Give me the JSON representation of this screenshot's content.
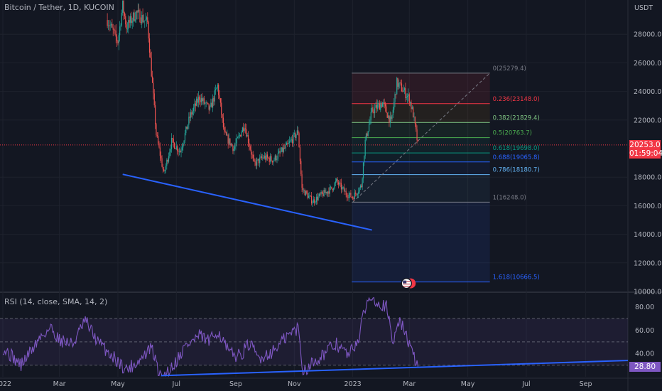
{
  "header": {
    "title": "Bitcoin / Tether, 1D, KUCOIN",
    "currency": "USDT"
  },
  "price_tag": {
    "price": "20253.0",
    "countdown": "01:59:04"
  },
  "rsi_panel": {
    "title": "RSI (14, close, SMA, 14, 2)",
    "value_label": "28.80"
  },
  "colors": {
    "background": "#131722",
    "up": "#26a69a",
    "down": "#ef5350",
    "trendline": "#2962ff",
    "rsi_line": "#7e57c2",
    "price_tag": "#f23645",
    "fib_box": "#2962ff"
  },
  "chart_data": [
    {
      "type": "candlestick",
      "title": "Bitcoin / Tether, 1D, KUCOIN",
      "y_axis": {
        "unit": "USDT",
        "ticks": [
          "28000.0",
          "26000.0",
          "24000.0",
          "22000.0",
          "18000.0",
          "16000.0",
          "14000.0",
          "12000.0",
          "10000.0"
        ],
        "range": [
          10000,
          30400
        ]
      },
      "x_axis": {
        "ticks": [
          "2022",
          "Mar",
          "May",
          "Jul",
          "Sep",
          "Nov",
          "2023",
          "Mar",
          "May",
          "Jul",
          "Sep"
        ]
      },
      "price_path": [
        [
          "2022-04-20",
          29000
        ],
        [
          "2022-05-01",
          27500
        ],
        [
          "2022-05-06",
          30000
        ],
        [
          "2022-05-10",
          28500
        ],
        [
          "2022-05-20",
          29500
        ],
        [
          "2022-06-01",
          28800
        ],
        [
          "2022-06-10",
          21000
        ],
        [
          "2022-06-18",
          18200
        ],
        [
          "2022-06-26",
          20500
        ],
        [
          "2022-07-05",
          19800
        ],
        [
          "2022-07-15",
          22200
        ],
        [
          "2022-07-25",
          23600
        ],
        [
          "2022-08-05",
          22700
        ],
        [
          "2022-08-13",
          24400
        ],
        [
          "2022-08-20",
          21000
        ],
        [
          "2022-08-30",
          20000
        ],
        [
          "2022-09-10",
          21700
        ],
        [
          "2022-09-20",
          18900
        ],
        [
          "2022-09-30",
          19400
        ],
        [
          "2022-10-10",
          19200
        ],
        [
          "2022-10-25",
          20200
        ],
        [
          "2022-11-05",
          21200
        ],
        [
          "2022-11-09",
          17200
        ],
        [
          "2022-11-20",
          16300
        ],
        [
          "2022-11-28",
          16700
        ],
        [
          "2022-12-10",
          17200
        ],
        [
          "2022-12-15",
          17700
        ],
        [
          "2022-12-25",
          16850
        ],
        [
          "2023-01-01",
          16600
        ],
        [
          "2023-01-10",
          17400
        ],
        [
          "2023-01-14",
          20500
        ],
        [
          "2023-01-21",
          22600
        ],
        [
          "2023-02-01",
          23200
        ],
        [
          "2023-02-10",
          21800
        ],
        [
          "2023-02-16",
          24600
        ],
        [
          "2023-02-20",
          24300
        ],
        [
          "2023-03-01",
          23500
        ],
        [
          "2023-03-05",
          22400
        ],
        [
          "2023-03-10",
          20253
        ]
      ],
      "last_price": 20253.0,
      "fibonacci": [
        {
          "level": "0",
          "price": 25279.4,
          "label": "0(25279.4)"
        },
        {
          "level": "0.236",
          "price": 23148.0,
          "label": "0.236(23148.0)"
        },
        {
          "level": "0.382",
          "price": 21829.4,
          "label": "0.382(21829.4)"
        },
        {
          "level": "0.5",
          "price": 20763.7,
          "label": "0.5(20763.7)"
        },
        {
          "level": "0.618",
          "price": 19698.0,
          "label": "0.618(19698.0)"
        },
        {
          "level": "0.688",
          "price": 19065.8,
          "label": "0.688(19065.8)"
        },
        {
          "level": "0.786",
          "price": 18180.7,
          "label": "0.786(18180.7)"
        },
        {
          "level": "1",
          "price": 16248.0,
          "label": "1(16248.0)"
        },
        {
          "level": "1.618",
          "price": 10666.5,
          "label": "1.618(10666.5)"
        }
      ],
      "trendline": {
        "from": [
          "2022-05-06",
          18200
        ],
        "to": [
          "2023-01-21",
          14300
        ]
      },
      "grid": true
    },
    {
      "type": "line",
      "title": "RSI (14, close, SMA, 14, 2)",
      "y_axis": {
        "ticks": [
          "80.00",
          "60.00",
          "40.00"
        ],
        "range": [
          20,
          92
        ]
      },
      "bands": [
        70,
        50,
        30
      ],
      "rsi_path": [
        [
          "2022-01-01",
          45
        ],
        [
          "2022-01-20",
          30
        ],
        [
          "2022-02-10",
          55
        ],
        [
          "2022-02-20",
          62
        ],
        [
          "2022-03-01",
          52
        ],
        [
          "2022-03-15",
          48
        ],
        [
          "2022-03-28",
          68
        ],
        [
          "2022-04-10",
          50
        ],
        [
          "2022-04-25",
          38
        ],
        [
          "2022-05-10",
          26
        ],
        [
          "2022-05-25",
          35
        ],
        [
          "2022-06-05",
          45
        ],
        [
          "2022-06-15",
          18
        ],
        [
          "2022-06-28",
          30
        ],
        [
          "2022-07-10",
          46
        ],
        [
          "2022-07-25",
          55
        ],
        [
          "2022-08-05",
          50
        ],
        [
          "2022-08-13",
          60
        ],
        [
          "2022-08-25",
          40
        ],
        [
          "2022-09-05",
          38
        ],
        [
          "2022-09-15",
          48
        ],
        [
          "2022-09-25",
          36
        ],
        [
          "2022-10-10",
          42
        ],
        [
          "2022-10-25",
          55
        ],
        [
          "2022-11-05",
          62
        ],
        [
          "2022-11-10",
          25
        ],
        [
          "2022-11-20",
          32
        ],
        [
          "2022-12-05",
          42
        ],
        [
          "2022-12-15",
          48
        ],
        [
          "2022-12-28",
          38
        ],
        [
          "2023-01-08",
          55
        ],
        [
          "2023-01-14",
          80
        ],
        [
          "2023-01-21",
          90
        ],
        [
          "2023-01-28",
          84
        ],
        [
          "2023-02-05",
          80
        ],
        [
          "2023-02-12",
          48
        ],
        [
          "2023-02-17",
          70
        ],
        [
          "2023-02-25",
          58
        ],
        [
          "2023-03-03",
          42
        ],
        [
          "2023-03-10",
          28.8
        ]
      ],
      "last_value": 28.8,
      "trendline": {
        "from": [
          "2022-06-15",
          21
        ],
        "to": [
          "2023-09-30",
          34
        ]
      }
    }
  ]
}
